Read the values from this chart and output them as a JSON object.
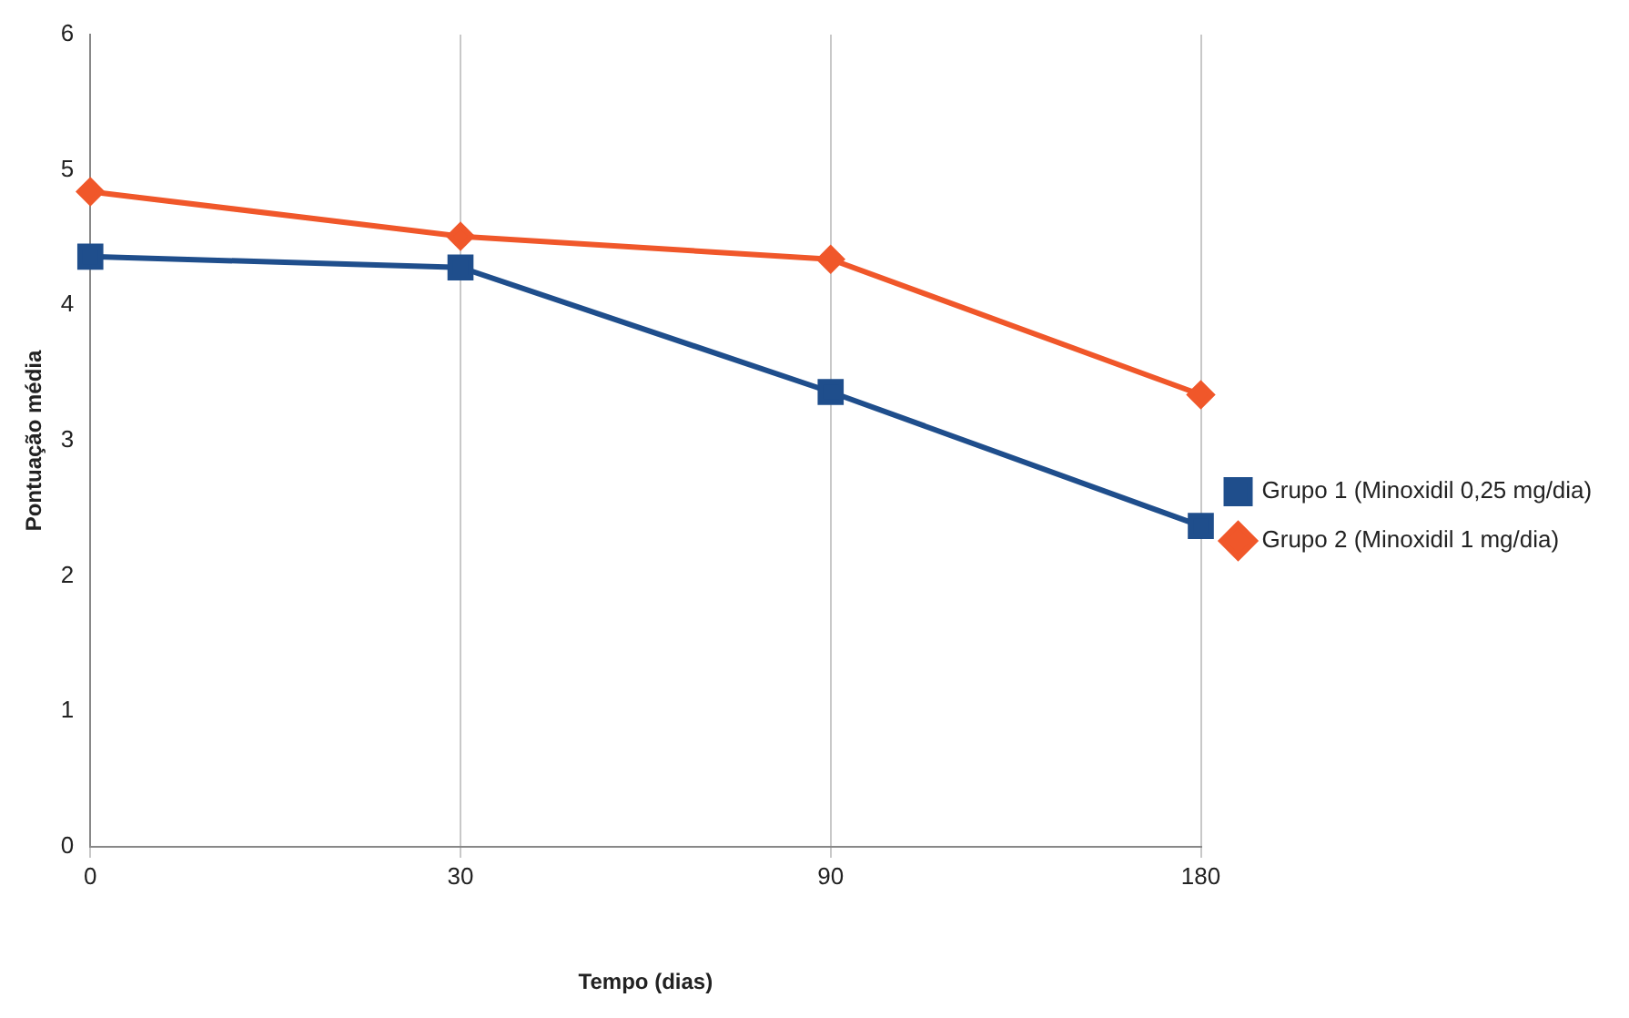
{
  "chart_data": {
    "type": "line",
    "xlabel": "Tempo (dias)",
    "ylabel": "Pontuação média",
    "categories": [
      "0",
      "30",
      "90",
      "180"
    ],
    "series": [
      {
        "name": "Grupo 1 (Minoxidil 0,25 mg/dia)",
        "color": "#1f4e8c",
        "marker": "square",
        "values": [
          4.36,
          4.28,
          3.36,
          2.37
        ]
      },
      {
        "name": "Grupo 2 (Minoxidil 1 mg/dia)",
        "color": "#f0572a",
        "marker": "diamond",
        "values": [
          4.84,
          4.51,
          4.34,
          3.34
        ]
      }
    ],
    "ylim": [
      0,
      6
    ],
    "yticks": [
      0,
      1,
      2,
      3,
      4,
      5,
      6
    ],
    "grid": "x",
    "legend": "right",
    "line_style": "solid"
  }
}
